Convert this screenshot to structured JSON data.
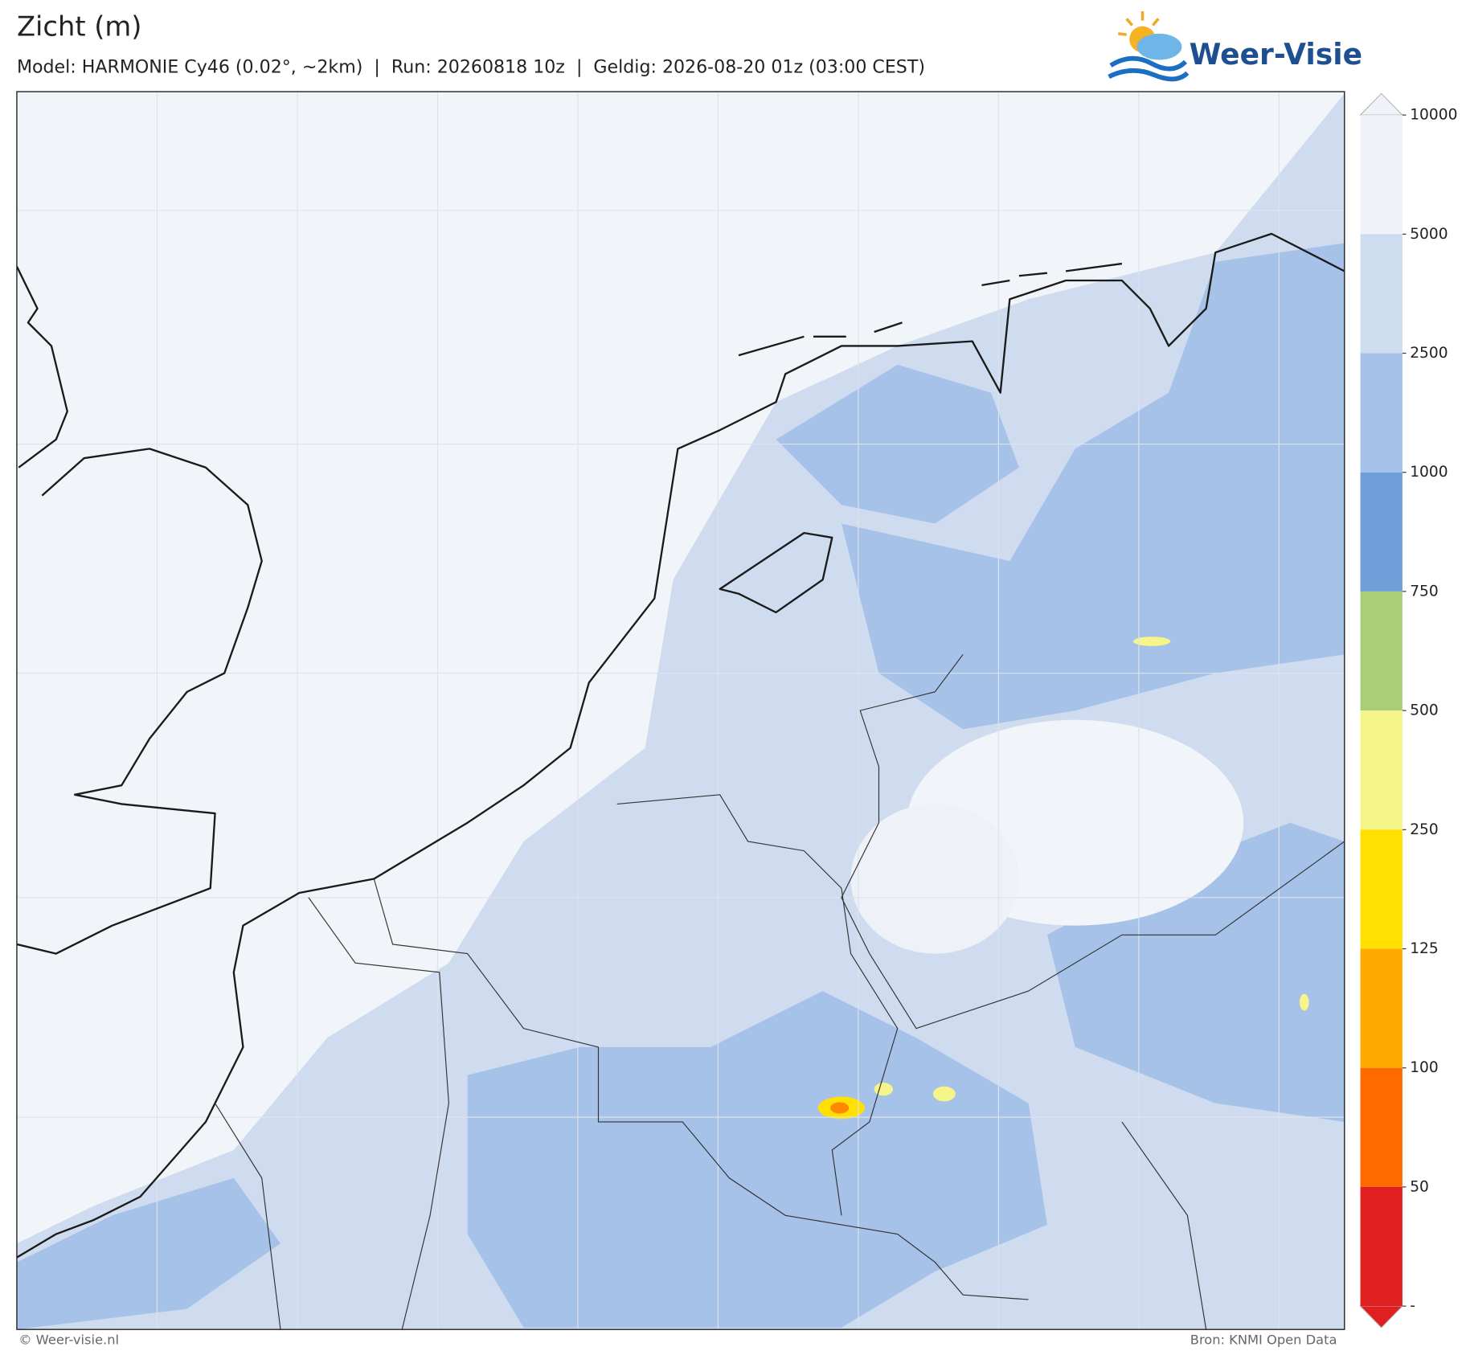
{
  "header": {
    "title": "Zicht (m)",
    "subtitle": "Model: HARMONIE Cy46 (0.02°, ~2km)  |  Run: 20260818 10z  |  Geldig: 2026-08-20 01z (03:00 CEST)"
  },
  "logo": {
    "text": "Weer-Visie"
  },
  "colorbar": {
    "ticks": [
      10000,
      5000,
      2500,
      1000,
      750,
      500,
      250,
      125,
      100,
      50
    ],
    "bottom_label": "-",
    "colors": [
      "#eff3f9",
      "#cedcf0",
      "#a6c2e8",
      "#6f9fd8",
      "#a8cf78",
      "#f5f58a",
      "#ffe000",
      "#ffaa00",
      "#ff6a00",
      "#e02020"
    ],
    "extend_max_color": "#eff3f9",
    "extend_min_color": "#e02020"
  },
  "footer": {
    "left": "© Weer-visie.nl",
    "right": "Bron: KNMI Open Data"
  }
}
